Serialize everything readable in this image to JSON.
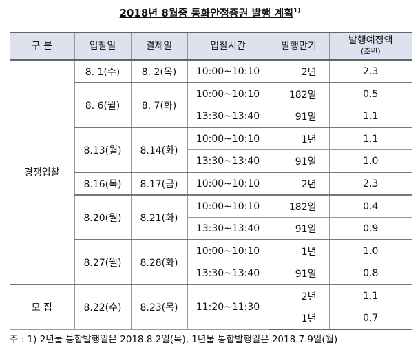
{
  "title": "2018년 8월중 통화안정증권 발행 계획",
  "title_note": "1)",
  "table": {
    "headers": [
      "구 분",
      "입찰일",
      "결제일",
      "입찰시간",
      "발행만기",
      "발행예정액"
    ],
    "amount_unit": "(조원)",
    "groups": [
      {
        "label": "경쟁입찰",
        "auctions": [
          {
            "date": "8. 1(수)",
            "settle": "8. 2(목)",
            "items": [
              {
                "time": "10:00~10:10",
                "maturity": "2년",
                "amount": "2.3"
              }
            ]
          },
          {
            "date": "8. 6(월)",
            "settle": "8. 7(화)",
            "items": [
              {
                "time": "10:00~10:10",
                "maturity": "182일",
                "amount": "0.5"
              },
              {
                "time": "13:30~13:40",
                "maturity": "91일",
                "amount": "1.1"
              }
            ]
          },
          {
            "date": "8.13(월)",
            "settle": "8.14(화)",
            "items": [
              {
                "time": "10:00~10:10",
                "maturity": "1년",
                "amount": "1.1"
              },
              {
                "time": "13:30~13:40",
                "maturity": "91일",
                "amount": "1.0"
              }
            ]
          },
          {
            "date": "8.16(목)",
            "settle": "8.17(금)",
            "items": [
              {
                "time": "10:00~10:10",
                "maturity": "2년",
                "amount": "2.3"
              }
            ]
          },
          {
            "date": "8.20(월)",
            "settle": "8.21(화)",
            "items": [
              {
                "time": "10:00~10:10",
                "maturity": "182일",
                "amount": "0.4"
              },
              {
                "time": "13:30~13:40",
                "maturity": "91일",
                "amount": "0.9"
              }
            ]
          },
          {
            "date": "8.27(월)",
            "settle": "8.28(화)",
            "items": [
              {
                "time": "10:00~10:10",
                "maturity": "1년",
                "amount": "1.0"
              },
              {
                "time": "13:30~13:40",
                "maturity": "91일",
                "amount": "0.8"
              }
            ]
          }
        ]
      },
      {
        "label": "모 집",
        "auctions": [
          {
            "date": "8.22(수)",
            "settle": "8.23(목)",
            "time": "11:20~11:30",
            "items": [
              {
                "maturity": "2년",
                "amount": "1.1"
              },
              {
                "maturity": "1년",
                "amount": "0.7"
              }
            ]
          }
        ]
      }
    ]
  },
  "footnote": "주 : 1) 2년물 통합발행일은 2018.8.2일(목), 1년물 통합발행일은 2018.7.9일(월)"
}
